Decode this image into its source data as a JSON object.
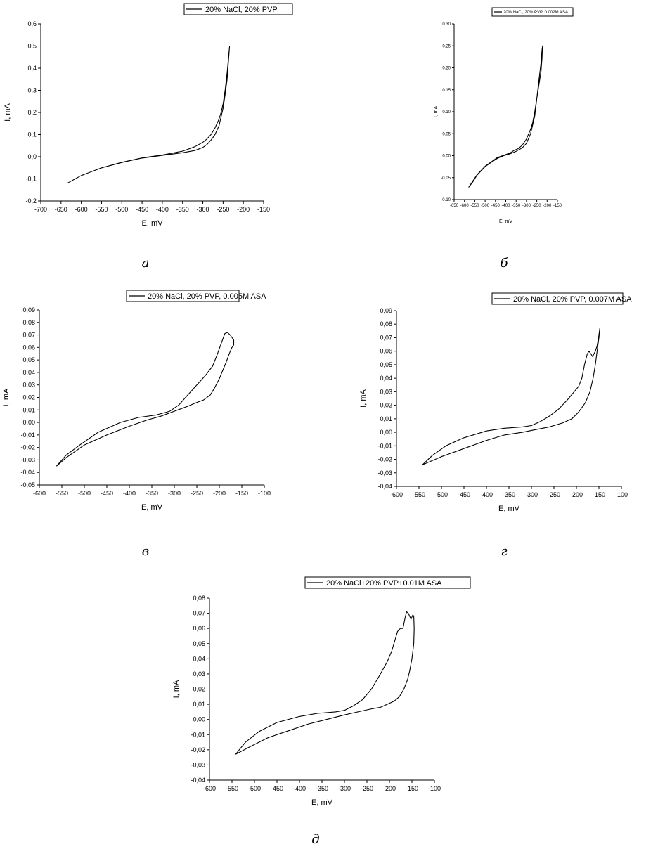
{
  "chart_data": [
    {
      "id": "a",
      "type": "line",
      "caption": "а",
      "legend": "20% NaCl, 20% PVP",
      "xlabel": "E, mV",
      "ylabel": "I, mA",
      "xlim": [
        -700,
        -150
      ],
      "ylim": [
        -0.2,
        0.6
      ],
      "xticks": [
        -700,
        -650,
        -600,
        -550,
        -500,
        -450,
        -400,
        -350,
        -300,
        -250,
        -200,
        -150
      ],
      "yticks": [
        -0.2,
        -0.1,
        0.0,
        0.1,
        0.2,
        0.3,
        0.4,
        0.5,
        0.6
      ],
      "ytick_labels": [
        "-0,2",
        "-0,1",
        "0,0",
        "0,1",
        "0,2",
        "0,3",
        "0,4",
        "0,5",
        "0,6"
      ],
      "series": [
        {
          "x": [
            -635,
            -600,
            -550,
            -500,
            -450,
            -400,
            -350,
            -320,
            -300,
            -290,
            -280,
            -270,
            -260,
            -255,
            -250,
            -245,
            -240,
            -236,
            -234,
            -236,
            -240,
            -245,
            -250,
            -255,
            -260,
            -270,
            -280,
            -290,
            -300,
            -320,
            -350,
            -400,
            -450,
            -500,
            -550,
            -600,
            -635
          ],
          "y": [
            -0.12,
            -0.085,
            -0.05,
            -0.025,
            -0.005,
            0.008,
            0.025,
            0.045,
            0.065,
            0.08,
            0.1,
            0.13,
            0.17,
            0.2,
            0.24,
            0.3,
            0.38,
            0.46,
            0.5,
            0.45,
            0.35,
            0.28,
            0.22,
            0.18,
            0.14,
            0.1,
            0.075,
            0.055,
            0.042,
            0.028,
            0.018,
            0.006,
            -0.006,
            -0.026,
            -0.05,
            -0.085,
            -0.12
          ]
        }
      ]
    },
    {
      "id": "b",
      "type": "line",
      "caption": "б",
      "legend": "20% NaCl, 20% PVP, 0.002M ASA",
      "xlabel": "E, mV",
      "ylabel": "I, mA",
      "xlim": [
        -650,
        -150
      ],
      "ylim": [
        -0.1,
        0.3
      ],
      "xticks": [
        -650,
        -600,
        -550,
        -500,
        -450,
        -400,
        -350,
        -300,
        -250,
        -200,
        -150
      ],
      "yticks": [
        -0.1,
        -0.05,
        0.0,
        0.05,
        0.1,
        0.15,
        0.2,
        0.25,
        0.3
      ],
      "ytick_labels": [
        "-0.10",
        "-0.05",
        "0.00",
        "0.05",
        "0.10",
        "0.15",
        "0.20",
        "0.25",
        "0.30"
      ],
      "series": [
        {
          "x": [
            -580,
            -560,
            -540,
            -520,
            -500,
            -470,
            -440,
            -410,
            -380,
            -350,
            -320,
            -300,
            -280,
            -260,
            -250,
            -240,
            -230,
            -225,
            -222,
            -225,
            -230,
            -240,
            -250,
            -260,
            -270,
            -280,
            -300,
            -320,
            -340,
            -360,
            -380,
            -410,
            -440,
            -470,
            -500,
            -520,
            -540,
            -560,
            -580
          ],
          "y": [
            -0.072,
            -0.06,
            -0.045,
            -0.035,
            -0.025,
            -0.015,
            -0.006,
            0.0,
            0.004,
            0.01,
            0.018,
            0.028,
            0.05,
            0.09,
            0.13,
            0.17,
            0.21,
            0.24,
            0.25,
            0.22,
            0.19,
            0.16,
            0.13,
            0.1,
            0.075,
            0.06,
            0.038,
            0.024,
            0.016,
            0.012,
            0.006,
            0.001,
            -0.004,
            -0.014,
            -0.024,
            -0.034,
            -0.044,
            -0.058,
            -0.072
          ]
        }
      ]
    },
    {
      "id": "c",
      "type": "line",
      "caption": "в",
      "legend": "20% NaCl, 20% PVP, 0.005M ASA",
      "xlabel": "E, mV",
      "ylabel": "I, mA",
      "xlim": [
        -600,
        -100
      ],
      "ylim": [
        -0.05,
        0.09
      ],
      "xticks": [
        -600,
        -550,
        -500,
        -450,
        -400,
        -350,
        -300,
        -250,
        -200,
        -150,
        -100
      ],
      "yticks": [
        -0.05,
        -0.04,
        -0.03,
        -0.02,
        -0.01,
        0.0,
        0.01,
        0.02,
        0.03,
        0.04,
        0.05,
        0.06,
        0.07,
        0.08,
        0.09
      ],
      "ytick_labels": [
        "-0,05",
        "-0,04",
        "-0,03",
        "-0,02",
        "-0,01",
        "0,00",
        "0,01",
        "0,02",
        "0,03",
        "0,04",
        "0,05",
        "0,06",
        "0,07",
        "0,08",
        "0,09"
      ],
      "series": [
        {
          "x": [
            -562,
            -540,
            -510,
            -470,
            -420,
            -380,
            -340,
            -310,
            -290,
            -270,
            -250,
            -230,
            -215,
            -205,
            -195,
            -188,
            -182,
            -176,
            -172,
            -168,
            -168,
            -172,
            -178,
            -185,
            -192,
            -200,
            -210,
            -220,
            -235,
            -250,
            -270,
            -300,
            -330,
            -360,
            -400,
            -450,
            -500,
            -540,
            -562
          ],
          "y": [
            -0.035,
            -0.026,
            -0.018,
            -0.008,
            0.0,
            0.004,
            0.006,
            0.009,
            0.014,
            0.022,
            0.03,
            0.038,
            0.045,
            0.054,
            0.064,
            0.071,
            0.072,
            0.07,
            0.068,
            0.066,
            0.062,
            0.06,
            0.055,
            0.048,
            0.042,
            0.035,
            0.028,
            0.022,
            0.018,
            0.016,
            0.013,
            0.009,
            0.005,
            0.002,
            -0.003,
            -0.01,
            -0.018,
            -0.028,
            -0.035
          ]
        }
      ]
    },
    {
      "id": "d",
      "type": "line",
      "caption": "г",
      "legend": "20% NaCl, 20% PVP, 0.007M ASA",
      "xlabel": "E, mV",
      "ylabel": "I, mA",
      "xlim": [
        -600,
        -100
      ],
      "ylim": [
        -0.04,
        0.09
      ],
      "xticks": [
        -600,
        -550,
        -500,
        -450,
        -400,
        -350,
        -300,
        -250,
        -200,
        -150,
        -100
      ],
      "yticks": [
        -0.04,
        -0.03,
        -0.02,
        -0.01,
        0.0,
        0.01,
        0.02,
        0.03,
        0.04,
        0.05,
        0.06,
        0.07,
        0.08,
        0.09
      ],
      "ytick_labels": [
        "-0,04",
        "-0,03",
        "-0,02",
        "-0,01",
        "0,00",
        "0,01",
        "0,02",
        "0,03",
        "0,04",
        "0,05",
        "0,06",
        "0,07",
        "0,08",
        "0,09"
      ],
      "series": [
        {
          "x": [
            -542,
            -520,
            -490,
            -450,
            -400,
            -360,
            -320,
            -300,
            -280,
            -260,
            -240,
            -220,
            -205,
            -195,
            -188,
            -182,
            -176,
            -172,
            -168,
            -164,
            -158,
            -154,
            -150,
            -148,
            -150,
            -154,
            -158,
            -163,
            -170,
            -180,
            -195,
            -210,
            -230,
            -260,
            -290,
            -320,
            -360,
            -400,
            -450,
            -500,
            -542
          ],
          "y": [
            -0.024,
            -0.017,
            -0.01,
            -0.004,
            0.001,
            0.003,
            0.004,
            0.005,
            0.008,
            0.012,
            0.017,
            0.024,
            0.03,
            0.034,
            0.04,
            0.05,
            0.058,
            0.06,
            0.058,
            0.056,
            0.06,
            0.064,
            0.072,
            0.077,
            0.07,
            0.06,
            0.05,
            0.04,
            0.03,
            0.022,
            0.015,
            0.01,
            0.007,
            0.004,
            0.002,
            0.0,
            -0.002,
            -0.006,
            -0.012,
            -0.018,
            -0.024
          ]
        }
      ]
    },
    {
      "id": "e",
      "type": "line",
      "caption": "д",
      "legend": "20% NaCl+20% PVP+0.01M ASA",
      "xlabel": "E, mV",
      "ylabel": "I, mA",
      "xlim": [
        -600,
        -100
      ],
      "ylim": [
        -0.04,
        0.08
      ],
      "xticks": [
        -600,
        -550,
        -500,
        -450,
        -400,
        -350,
        -300,
        -250,
        -200,
        -150,
        -100
      ],
      "yticks": [
        -0.04,
        -0.03,
        -0.02,
        -0.01,
        0.0,
        0.01,
        0.02,
        0.03,
        0.04,
        0.05,
        0.06,
        0.07,
        0.08
      ],
      "ytick_labels": [
        "-0,04",
        "-0,03",
        "-0,02",
        "-0,01",
        "0,00",
        "0,01",
        "0,02",
        "0,03",
        "0,04",
        "0,05",
        "0,06",
        "0,07",
        "0,08"
      ],
      "series": [
        {
          "x": [
            -542,
            -520,
            -490,
            -450,
            -400,
            -360,
            -320,
            -300,
            -280,
            -260,
            -240,
            -220,
            -205,
            -195,
            -188,
            -182,
            -176,
            -170,
            -166,
            -162,
            -158,
            -152,
            -148,
            -146,
            -145,
            -146,
            -150,
            -155,
            -160,
            -168,
            -178,
            -190,
            -205,
            -220,
            -240,
            -270,
            -300,
            -340,
            -380,
            -420,
            -470,
            -510,
            -542
          ],
          "y": [
            -0.023,
            -0.015,
            -0.008,
            -0.002,
            0.002,
            0.004,
            0.005,
            0.006,
            0.009,
            0.013,
            0.02,
            0.03,
            0.038,
            0.045,
            0.052,
            0.058,
            0.06,
            0.06,
            0.066,
            0.071,
            0.07,
            0.066,
            0.069,
            0.068,
            0.06,
            0.05,
            0.04,
            0.032,
            0.026,
            0.02,
            0.015,
            0.012,
            0.01,
            0.008,
            0.007,
            0.005,
            0.003,
            0.0,
            -0.003,
            -0.007,
            -0.012,
            -0.018,
            -0.023
          ]
        }
      ]
    }
  ]
}
